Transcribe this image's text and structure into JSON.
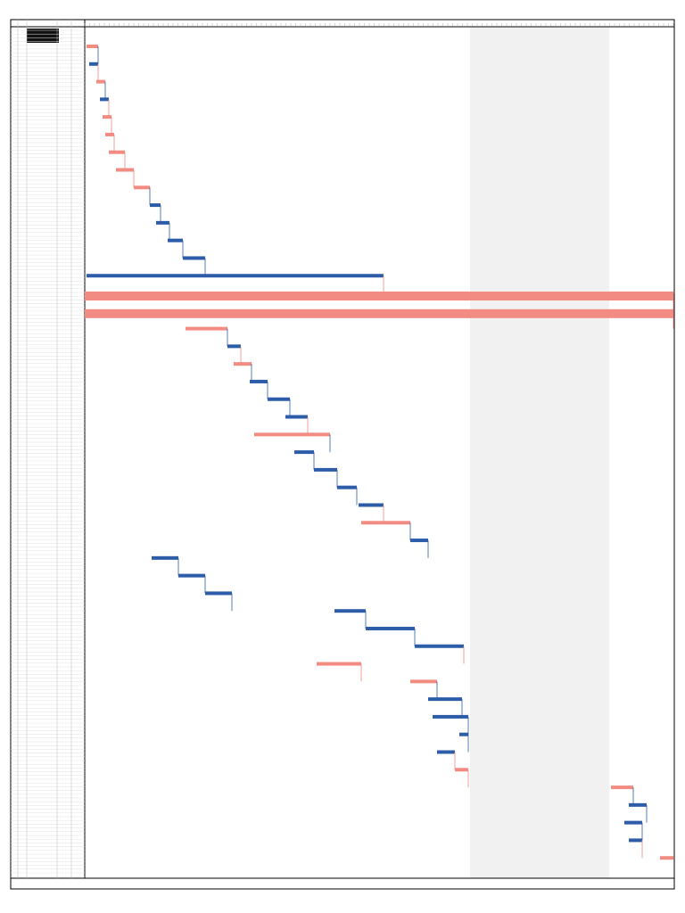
{
  "chart_data": {
    "type": "gantt",
    "xlim": [
      0,
      660
    ],
    "tasks": [
      {
        "start": 2,
        "end": 15,
        "color": "#f28b82"
      },
      {
        "start": 5,
        "end": 15,
        "color": "#2d5ca8"
      },
      {
        "start": 13,
        "end": 23,
        "color": "#f28b82"
      },
      {
        "start": 17,
        "end": 27,
        "color": "#2d5ca8"
      },
      {
        "start": 20,
        "end": 30,
        "color": "#f28b82"
      },
      {
        "start": 23,
        "end": 33,
        "color": "#f28b82"
      },
      {
        "start": 27,
        "end": 45,
        "color": "#f28b82"
      },
      {
        "start": 35,
        "end": 55,
        "color": "#f28b82"
      },
      {
        "start": 55,
        "end": 73,
        "color": "#f28b82"
      },
      {
        "start": 73,
        "end": 85,
        "color": "#2d5ca8"
      },
      {
        "start": 80,
        "end": 95,
        "color": "#2d5ca8"
      },
      {
        "start": 93,
        "end": 110,
        "color": "#2d5ca8"
      },
      {
        "start": 110,
        "end": 135,
        "color": "#2d5ca8"
      },
      {
        "start": 2,
        "end": 335,
        "color": "#2d5ca8"
      },
      {
        "start": 0,
        "end": 660,
        "color": "#f28b82"
      },
      {
        "start": 0,
        "end": 660,
        "color": "#f28b82"
      },
      {
        "start": 113,
        "end": 160,
        "color": "#f28b82"
      },
      {
        "start": 160,
        "end": 175,
        "color": "#2d5ca8"
      },
      {
        "start": 167,
        "end": 187,
        "color": "#f28b82"
      },
      {
        "start": 185,
        "end": 205,
        "color": "#2d5ca8"
      },
      {
        "start": 205,
        "end": 230,
        "color": "#2d5ca8"
      },
      {
        "start": 225,
        "end": 250,
        "color": "#2d5ca8"
      },
      {
        "start": 190,
        "end": 275,
        "color": "#f28b82"
      },
      {
        "start": 235,
        "end": 257,
        "color": "#2d5ca8"
      },
      {
        "start": 257,
        "end": 283,
        "color": "#2d5ca8"
      },
      {
        "start": 283,
        "end": 305,
        "color": "#2d5ca8"
      },
      {
        "start": 307,
        "end": 335,
        "color": "#2d5ca8"
      },
      {
        "start": 310,
        "end": 365,
        "color": "#f28b82"
      },
      {
        "start": 365,
        "end": 385,
        "color": "#2d5ca8"
      },
      {
        "start": 75,
        "end": 105,
        "color": "#2d5ca8"
      },
      {
        "start": 105,
        "end": 135,
        "color": "#2d5ca8"
      },
      {
        "start": 135,
        "end": 165,
        "color": "#2d5ca8"
      },
      {
        "start": 280,
        "end": 315,
        "color": "#2d5ca8"
      },
      {
        "start": 315,
        "end": 370,
        "color": "#2d5ca8"
      },
      {
        "start": 370,
        "end": 425,
        "color": "#2d5ca8"
      },
      {
        "start": 260,
        "end": 310,
        "color": "#f28b82"
      },
      {
        "start": 365,
        "end": 395,
        "color": "#f28b82"
      },
      {
        "start": 385,
        "end": 423,
        "color": "#2d5ca8"
      },
      {
        "start": 390,
        "end": 430,
        "color": "#2d5ca8"
      },
      {
        "start": 420,
        "end": 430,
        "color": "#2d5ca8"
      },
      {
        "start": 395,
        "end": 415,
        "color": "#2d5ca8"
      },
      {
        "start": 415,
        "end": 430,
        "color": "#f28b82"
      },
      {
        "start": 590,
        "end": 615,
        "color": "#f28b82"
      },
      {
        "start": 610,
        "end": 630,
        "color": "#2d5ca8"
      },
      {
        "start": 605,
        "end": 625,
        "color": "#2d5ca8"
      },
      {
        "start": 610,
        "end": 625,
        "color": "#2d5ca8"
      },
      {
        "start": 645,
        "end": 660,
        "color": "#f28b82"
      }
    ]
  }
}
